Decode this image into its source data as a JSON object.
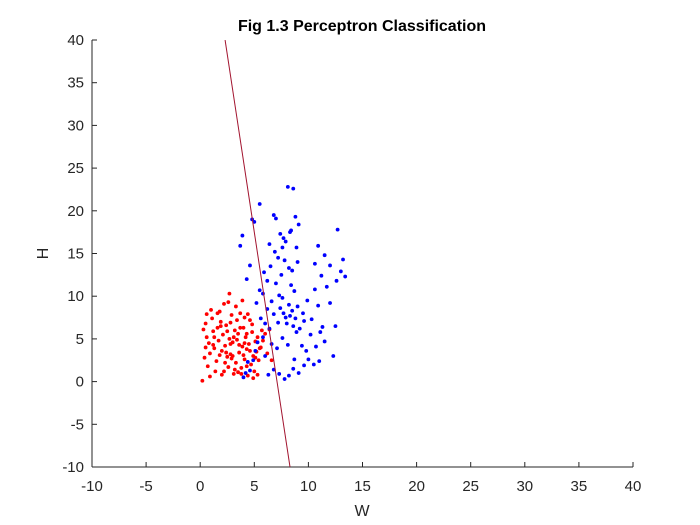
{
  "chart_data": {
    "type": "scatter",
    "title": "Fig 1.3 Perceptron Classification",
    "xlabel": "W",
    "ylabel": "H",
    "xlim": [
      -10,
      40
    ],
    "ylim": [
      -10,
      40
    ],
    "xticks": [
      "-10",
      "-5",
      "0",
      "5",
      "10",
      "15",
      "20",
      "25",
      "30",
      "35",
      "40"
    ],
    "yticks": [
      "40",
      "35",
      "30",
      "25",
      "20",
      "15",
      "10",
      "5",
      "0",
      "-5",
      "-10"
    ],
    "grid": false,
    "legend": "none",
    "boundary_line": {
      "color": "#A2142F",
      "x": [
        2.3,
        8.3
      ],
      "y": [
        40,
        -10
      ]
    },
    "series": [
      {
        "color": "#FF0000",
        "points": [
          [
            0.3,
            6.1
          ],
          [
            0.5,
            6.8
          ],
          [
            0.6,
            5.2
          ],
          [
            0.8,
            4.5
          ],
          [
            0.9,
            3.3
          ],
          [
            0.4,
            2.8
          ],
          [
            1.1,
            7.4
          ],
          [
            1.2,
            5.9
          ],
          [
            1.3,
            3.9
          ],
          [
            0.7,
            1.8
          ],
          [
            1.5,
            2.4
          ],
          [
            1.6,
            6.3
          ],
          [
            1.7,
            4.8
          ],
          [
            1.8,
            8.2
          ],
          [
            1.9,
            7.0
          ],
          [
            2.0,
            3.6
          ],
          [
            2.1,
            5.5
          ],
          [
            2.2,
            1.2
          ],
          [
            2.3,
            4.2
          ],
          [
            2.4,
            6.6
          ],
          [
            2.5,
            2.9
          ],
          [
            2.6,
            9.3
          ],
          [
            2.7,
            5.0
          ],
          [
            2.8,
            3.2
          ],
          [
            2.9,
            7.8
          ],
          [
            3.0,
            4.6
          ],
          [
            3.1,
            0.9
          ],
          [
            3.2,
            6.0
          ],
          [
            3.3,
            2.2
          ],
          [
            3.4,
            4.9
          ],
          [
            3.5,
            5.6
          ],
          [
            3.6,
            3.4
          ],
          [
            3.7,
            8.0
          ],
          [
            3.8,
            1.6
          ],
          [
            3.9,
            4.1
          ],
          [
            4.0,
            6.3
          ],
          [
            4.1,
            2.6
          ],
          [
            4.2,
            5.2
          ],
          [
            4.3,
            3.8
          ],
          [
            4.4,
            0.7
          ],
          [
            4.5,
            4.4
          ],
          [
            4.6,
            7.2
          ],
          [
            4.7,
            2.0
          ],
          [
            4.8,
            5.8
          ],
          [
            4.9,
            3.0
          ],
          [
            5.0,
            1.2
          ],
          [
            5.1,
            4.7
          ],
          [
            5.2,
            3.5
          ],
          [
            5.4,
            2.5
          ],
          [
            5.6,
            4.0
          ],
          [
            0.2,
            0.1
          ],
          [
            0.9,
            0.6
          ],
          [
            1.4,
            1.2
          ],
          [
            2.0,
            0.8
          ],
          [
            2.6,
            1.7
          ],
          [
            3.2,
            1.4
          ],
          [
            3.8,
            0.9
          ],
          [
            4.3,
            1.8
          ],
          [
            4.9,
            0.4
          ],
          [
            5.3,
            0.8
          ],
          [
            0.6,
            7.9
          ],
          [
            1.0,
            8.4
          ],
          [
            1.6,
            8.0
          ],
          [
            2.2,
            9.1
          ],
          [
            2.7,
            10.3
          ],
          [
            3.3,
            8.8
          ],
          [
            3.9,
            9.5
          ],
          [
            4.4,
            7.9
          ],
          [
            1.9,
            6.5
          ],
          [
            2.8,
            6.9
          ],
          [
            3.4,
            7.2
          ],
          [
            4.1,
            7.5
          ],
          [
            2.4,
            3.4
          ],
          [
            2.9,
            2.7
          ],
          [
            3.6,
            4.3
          ],
          [
            4.0,
            3.1
          ],
          [
            4.6,
            3.6
          ],
          [
            5.1,
            2.8
          ],
          [
            5.5,
            3.9
          ],
          [
            5.8,
            4.8
          ],
          [
            6.0,
            5.6
          ],
          [
            6.2,
            3.3
          ],
          [
            6.4,
            6.1
          ],
          [
            6.6,
            2.5
          ],
          [
            0.5,
            4.0
          ],
          [
            1.2,
            4.3
          ],
          [
            1.8,
            3.1
          ],
          [
            2.3,
            2.2
          ],
          [
            3.0,
            3.0
          ],
          [
            3.5,
            1.1
          ],
          [
            1.3,
            5.2
          ],
          [
            2.5,
            5.9
          ],
          [
            3.1,
            5.2
          ],
          [
            3.7,
            6.3
          ],
          [
            4.3,
            5.6
          ],
          [
            4.8,
            6.7
          ],
          [
            5.3,
            5.2
          ],
          [
            5.7,
            6.0
          ],
          [
            4.1,
            4.5
          ],
          [
            2.8,
            4.4
          ]
        ]
      },
      {
        "color": "#0000FF",
        "points": [
          [
            3.7,
            15.9
          ],
          [
            3.9,
            17.1
          ],
          [
            4.3,
            12.0
          ],
          [
            4.6,
            13.6
          ],
          [
            4.8,
            19.0
          ],
          [
            5.0,
            18.7
          ],
          [
            5.5,
            20.8
          ],
          [
            5.8,
            10.3
          ],
          [
            6.2,
            11.8
          ],
          [
            6.5,
            13.5
          ],
          [
            6.8,
            19.5
          ],
          [
            7.0,
            19.1
          ],
          [
            7.2,
            14.5
          ],
          [
            7.4,
            17.3
          ],
          [
            7.5,
            12.5
          ],
          [
            7.6,
            15.7
          ],
          [
            7.8,
            14.2
          ],
          [
            7.9,
            16.4
          ],
          [
            8.1,
            22.8
          ],
          [
            8.2,
            13.3
          ],
          [
            8.4,
            17.7
          ],
          [
            8.5,
            13.0
          ],
          [
            8.6,
            22.6
          ],
          [
            8.8,
            19.3
          ],
          [
            8.9,
            15.7
          ],
          [
            9.0,
            14.0
          ],
          [
            7.6,
            9.8
          ],
          [
            7.7,
            8.0
          ],
          [
            7.9,
            7.5
          ],
          [
            8.0,
            6.8
          ],
          [
            8.2,
            9.0
          ],
          [
            8.3,
            7.7
          ],
          [
            8.4,
            11.3
          ],
          [
            8.5,
            8.3
          ],
          [
            8.6,
            6.5
          ],
          [
            8.7,
            10.6
          ],
          [
            8.8,
            7.4
          ],
          [
            8.9,
            5.8
          ],
          [
            9.0,
            8.8
          ],
          [
            7.3,
            10.1
          ],
          [
            7.4,
            8.6
          ],
          [
            7.2,
            6.9
          ],
          [
            7.0,
            11.5
          ],
          [
            6.8,
            7.9
          ],
          [
            6.6,
            9.4
          ],
          [
            6.4,
            6.2
          ],
          [
            6.2,
            8.5
          ],
          [
            6.0,
            6.8
          ],
          [
            5.8,
            5.2
          ],
          [
            5.6,
            7.4
          ],
          [
            5.3,
            4.6
          ],
          [
            5.1,
            3.6
          ],
          [
            4.9,
            2.5
          ],
          [
            4.6,
            1.3
          ],
          [
            4.4,
            2.3
          ],
          [
            4.2,
            1.0
          ],
          [
            4.0,
            0.5
          ],
          [
            6.3,
            0.8
          ],
          [
            6.8,
            1.4
          ],
          [
            7.3,
            0.9
          ],
          [
            7.8,
            0.3
          ],
          [
            8.2,
            0.7
          ],
          [
            8.6,
            1.5
          ],
          [
            9.1,
            1.0
          ],
          [
            9.6,
            1.9
          ],
          [
            10.0,
            2.6
          ],
          [
            10.5,
            2.0
          ],
          [
            11.0,
            2.4
          ],
          [
            9.5,
            8.0
          ],
          [
            9.9,
            9.5
          ],
          [
            10.3,
            7.3
          ],
          [
            10.6,
            10.8
          ],
          [
            10.9,
            8.9
          ],
          [
            11.3,
            6.4
          ],
          [
            11.5,
            4.7
          ],
          [
            11.7,
            11.1
          ],
          [
            12.0,
            9.2
          ],
          [
            12.3,
            3.0
          ],
          [
            12.5,
            6.5
          ],
          [
            12.7,
            17.8
          ],
          [
            13.0,
            12.9
          ],
          [
            13.2,
            14.3
          ],
          [
            13.4,
            12.3
          ],
          [
            12.6,
            11.8
          ],
          [
            12.0,
            13.6
          ],
          [
            11.5,
            14.8
          ],
          [
            10.9,
            15.9
          ],
          [
            11.2,
            12.4
          ],
          [
            10.6,
            13.8
          ],
          [
            9.4,
            4.2
          ],
          [
            9.8,
            3.6
          ],
          [
            10.2,
            5.5
          ],
          [
            10.7,
            4.1
          ],
          [
            11.1,
            5.8
          ],
          [
            6.0,
            3.0
          ],
          [
            6.6,
            4.4
          ],
          [
            7.1,
            3.9
          ],
          [
            7.6,
            5.1
          ],
          [
            8.1,
            4.3
          ],
          [
            8.7,
            2.6
          ],
          [
            9.2,
            6.2
          ],
          [
            9.6,
            7.1
          ],
          [
            5.5,
            10.7
          ],
          [
            5.2,
            9.2
          ],
          [
            5.9,
            12.8
          ],
          [
            6.4,
            16.1
          ],
          [
            6.9,
            15.2
          ],
          [
            7.7,
            16.8
          ],
          [
            8.3,
            17.5
          ],
          [
            9.1,
            18.4
          ]
        ]
      }
    ]
  }
}
